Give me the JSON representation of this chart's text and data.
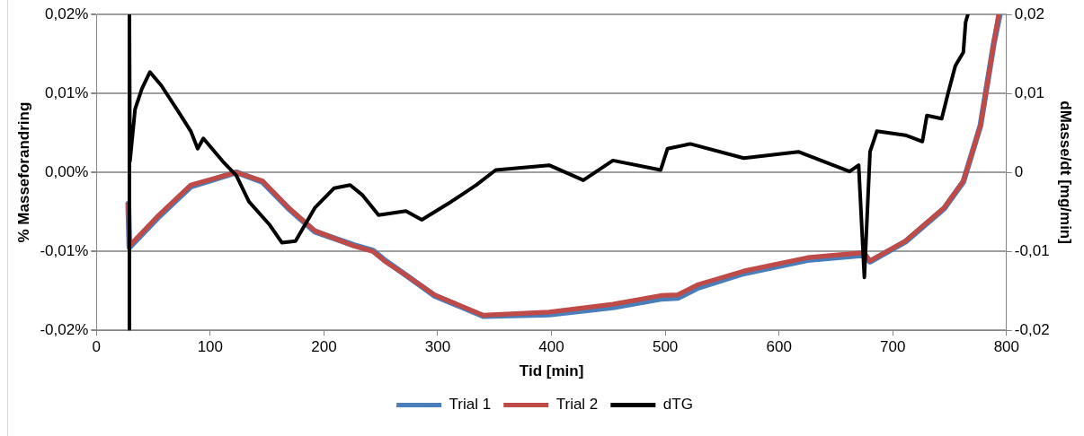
{
  "chart_data": {
    "type": "line",
    "xlabel": "Tid [min]",
    "ylabel": "% Masseforandring",
    "y2label": "dMasse/dt [mg/min]",
    "xlim": [
      0,
      800
    ],
    "xticks": [
      0,
      100,
      200,
      300,
      400,
      500,
      600,
      700,
      800
    ],
    "ylim": [
      -0.02,
      0.02
    ],
    "yticks": [
      {
        "value": -0.02,
        "label": "-0,02%"
      },
      {
        "value": -0.01,
        "label": "-0,01%"
      },
      {
        "value": 0,
        "label": "0,00%"
      },
      {
        "value": 0.01,
        "label": "0,01%"
      },
      {
        "value": 0.02,
        "label": "0,02%"
      }
    ],
    "y2lim": [
      -0.02,
      0.02
    ],
    "y2ticks": [
      {
        "value": -0.02,
        "label": "-0,02"
      },
      {
        "value": -0.01,
        "label": "-0,01"
      },
      {
        "value": 0,
        "label": "0"
      },
      {
        "value": 0.01,
        "label": "0,01"
      },
      {
        "value": 0.02,
        "label": "0,02"
      }
    ],
    "grid": "y",
    "legend": "bottom",
    "marker": "none",
    "line_style": "solid",
    "series": [
      {
        "name": "Trial 1",
        "color": "#4a7ebb",
        "x": [
          28,
          29,
          55,
          83,
          123,
          146,
          169,
          192,
          226,
          243,
          254,
          272,
          297,
          340,
          398,
          454,
          496,
          511,
          529,
          569,
          625,
          672,
          675,
          680,
          711,
          745,
          762,
          777,
          789,
          794
        ],
        "values": [
          -0.004,
          -0.0095,
          -0.0056,
          -0.0018,
          0,
          -0.0012,
          -0.0046,
          -0.0075,
          -0.0092,
          -0.0099,
          -0.0112,
          -0.013,
          -0.0156,
          -0.0182,
          -0.018,
          -0.0171,
          -0.016,
          -0.0159,
          -0.0146,
          -0.0128,
          -0.0111,
          -0.0105,
          -0.0106,
          -0.0113,
          -0.0088,
          -0.0046,
          -0.0012,
          0.0059,
          0.0165,
          0.02
        ]
      },
      {
        "name": "Trial 2",
        "color": "#be4b48",
        "x": [
          28,
          29,
          55,
          83,
          123,
          146,
          169,
          192,
          226,
          243,
          254,
          272,
          297,
          340,
          398,
          454,
          496,
          511,
          529,
          569,
          625,
          672,
          675,
          680,
          711,
          745,
          762,
          777,
          789,
          793
        ],
        "values": [
          -0.004,
          -0.0093,
          -0.0054,
          -0.0016,
          0,
          -0.0011,
          -0.0045,
          -0.0074,
          -0.0093,
          -0.01,
          -0.0113,
          -0.013,
          -0.0155,
          -0.0181,
          -0.0177,
          -0.0167,
          -0.0156,
          -0.0155,
          -0.0142,
          -0.0125,
          -0.0108,
          -0.0102,
          -0.0102,
          -0.0112,
          -0.0087,
          -0.0045,
          -0.0011,
          0.0059,
          0.0165,
          0.02
        ]
      },
      {
        "name": "dTG",
        "color": "#000000",
        "axis": "y2",
        "x": [
          29,
          29,
          29.5,
          34,
          40,
          47,
          57,
          72,
          83,
          89,
          94,
          111,
          123,
          134,
          152,
          163,
          175,
          192,
          209,
          223,
          234,
          248,
          272,
          286,
          312,
          334,
          351,
          398,
          428,
          454,
          496,
          502,
          522,
          569,
          617,
          662,
          670,
          675,
          680,
          686,
          711,
          726,
          730,
          743,
          748,
          755,
          762,
          764,
          766
        ],
        "values": [
          -0.02,
          0.02,
          0.0014,
          0.008,
          0.0106,
          0.0127,
          0.011,
          0.0077,
          0.0052,
          0.003,
          0.0043,
          0.0014,
          -0.0004,
          -0.0037,
          -0.0066,
          -0.0089,
          -0.0087,
          -0.0045,
          -0.002,
          -0.0016,
          -0.0029,
          -0.0054,
          -0.0049,
          -0.006,
          -0.0037,
          -0.0016,
          0.0003,
          0.0009,
          -0.001,
          0.0015,
          0.0003,
          0.003,
          0.0036,
          0.0018,
          0.0026,
          0.0001,
          0.0009,
          -0.0133,
          0.0026,
          0.0052,
          0.0047,
          0.0039,
          0.0072,
          0.0068,
          0.0097,
          0.0135,
          0.0152,
          0.019,
          0.02
        ]
      }
    ]
  }
}
